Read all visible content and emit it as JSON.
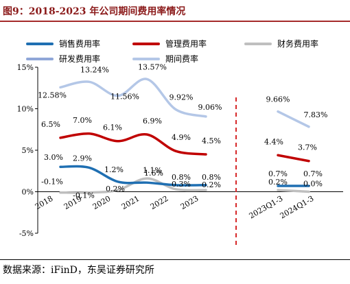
{
  "page": {
    "title": "图9：2018-2023 年公司期间费用率情况",
    "source": "数据来源：iFinD，东吴证券研究所"
  },
  "chart_data": {
    "type": "line",
    "title": "图9：2018-2023 年公司期间费用率情况",
    "xlabel": "",
    "ylabel": "",
    "ylim": [
      -5,
      15
    ],
    "yticks": [
      "15%",
      "10%",
      "5%",
      "0%",
      "-5%"
    ],
    "y_tick_values": [
      15,
      10,
      5,
      0,
      -5
    ],
    "grid": false,
    "legend_position": "top",
    "annual_categories": [
      "2018",
      "2019",
      "2020",
      "2021",
      "2022",
      "2023"
    ],
    "period_categories": [
      "2023Q1-3",
      "2024Q1-3"
    ],
    "divider_color": "#d62728",
    "series": [
      {
        "name": "销售费用率",
        "color": "#1f6fb2",
        "annual": [
          3.0,
          2.9,
          1.2,
          1.1,
          0.8,
          0.8
        ],
        "annual_labels": [
          "3.0%",
          "2.9%",
          "1.2%",
          "1.1%",
          "0.8%",
          "0.8%"
        ],
        "period": [
          0.7,
          0.7
        ],
        "period_labels": [
          "0.7%",
          "0.7%"
        ]
      },
      {
        "name": "管理费用率",
        "color": "#c00000",
        "annual": [
          6.5,
          7.0,
          6.1,
          6.9,
          4.9,
          4.5
        ],
        "annual_labels": [
          "6.5%",
          "7.0%",
          "6.1%",
          "6.9%",
          "4.9%",
          "4.5%"
        ],
        "period": [
          4.4,
          3.7
        ],
        "period_labels": [
          "4.4%",
          "3.7%"
        ]
      },
      {
        "name": "财务费用率",
        "color": "#bfbfbf",
        "annual": [
          -0.1,
          -0.1,
          0.2,
          1.6,
          0.3,
          0.2
        ],
        "annual_labels": [
          "-0.1%",
          "-0.1%",
          "0.2%",
          "1.6%",
          "0.3%",
          "0.2%"
        ],
        "period": [
          0.2,
          0.0
        ],
        "period_labels": [
          "0.2%",
          "0.0%"
        ]
      },
      {
        "name": "研发费用率",
        "color": "#8fa6d8",
        "annual": [],
        "annual_labels": [],
        "period": [],
        "period_labels": []
      },
      {
        "name": "期间费率",
        "color": "#b4c7e7",
        "annual": [
          12.58,
          13.24,
          11.56,
          13.57,
          9.92,
          9.06
        ],
        "annual_labels": [
          "12.58%",
          "13.24%",
          "11.56%",
          "13.57%",
          "9.92%",
          "9.06%"
        ],
        "period": [
          9.66,
          7.83
        ],
        "period_labels": [
          "9.66%",
          "7.83%"
        ]
      }
    ]
  }
}
